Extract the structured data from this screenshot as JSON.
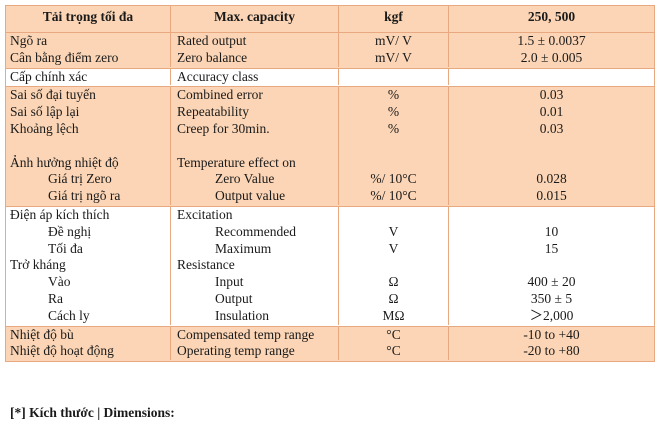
{
  "header": [
    "Tải trọng tối đa",
    "Max. capacity",
    "kgf",
    "250, 500"
  ],
  "sections": [
    {
      "rows": [
        {
          "vi": "Ngõ ra",
          "en": "Rated output",
          "unit": "mV/ V",
          "value": "1.5 ± 0.0037"
        },
        {
          "vi": "Cân bằng điểm zero",
          "en": "Zero balance",
          "unit": "mV/ V",
          "value": "2.0 ± 0.005"
        }
      ]
    },
    {
      "rows": [
        {
          "vi": "Cấp chính xác",
          "en": "Accuracy class",
          "unit": null,
          "value": null
        }
      ]
    },
    {
      "rows": [
        {
          "vi": "Sai số đại tuyến",
          "en": "Combined error",
          "unit": "%",
          "value": "0.03"
        },
        {
          "vi": "Sai số lập lại",
          "en": "Repeatability",
          "unit": "%",
          "value": "0.01"
        },
        {
          "vi": "Khoảng lệch",
          "en": "Creep for 30min.",
          "unit": "%",
          "value": "0.03"
        },
        {
          "vi": "Ảnh hưởng nhiệt độ",
          "en": "Temperature effect on",
          "items": [
            {
              "vi": "Giá trị Zero",
              "en": "Zero Value",
              "unit": "%/ 10°C",
              "value": "0.028"
            },
            {
              "vi": "Giá trị ngõ ra",
              "en": "Output value",
              "unit": "%/ 10°C",
              "value": "0.015"
            }
          ]
        }
      ]
    },
    {
      "rows": [
        {
          "vi": "Điện áp kích thích",
          "en": "Excitation",
          "items": [
            {
              "vi": "Đề nghị",
              "en": "Recommended",
              "unit": "V",
              "value": "10"
            },
            {
              "vi": "Tối đa",
              "en": "Maximum",
              "unit": "V",
              "value": "15"
            }
          ]
        },
        {
          "vi": "Trở kháng",
          "en": "Resistance",
          "items": [
            {
              "vi": "Vào",
              "en": "Input",
              "unit": "Ω",
              "value": "400 ± 20"
            },
            {
              "vi": "Ra",
              "en": "Output",
              "unit": "Ω",
              "value": "350 ± 5"
            },
            {
              "vi": "Cách ly",
              "en": "Insulation",
              "unit": "MΩ",
              "value": "＞2,000"
            }
          ]
        }
      ]
    },
    {
      "rows": [
        {
          "vi": "Nhiệt độ bù",
          "en": "Compensated temp range",
          "unit": "°C",
          "value": "-10 to +40"
        },
        {
          "vi": "Nhiệt độ hoạt động",
          "en": "Operating temp range",
          "unit": "°C",
          "value": "-20 to +80"
        }
      ]
    }
  ],
  "footer": "[*] Kích thước | Dimensions:"
}
